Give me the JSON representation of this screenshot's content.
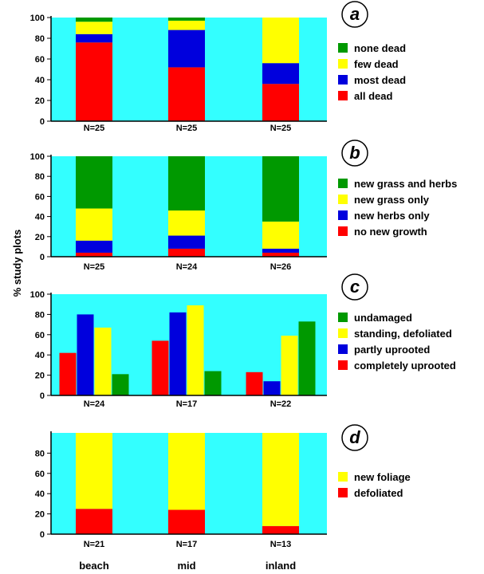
{
  "figure": {
    "ylabel": "% study plots",
    "sites": [
      "beach",
      "mid",
      "inland"
    ]
  },
  "chart_data": [
    {
      "panel_label": "a",
      "type": "bar",
      "stacked": true,
      "categories": [
        "N=25",
        "N=25",
        "N=25"
      ],
      "ylim": [
        0,
        100
      ],
      "yticks": [
        0,
        20,
        40,
        60,
        80,
        100
      ],
      "series": [
        {
          "name": "all dead",
          "color": "#ff0000",
          "values": [
            76,
            52,
            36
          ]
        },
        {
          "name": "most dead",
          "color": "#0000dd",
          "values": [
            8,
            36,
            20
          ]
        },
        {
          "name": "few dead",
          "color": "#ffff00",
          "values": [
            12,
            9,
            44
          ]
        },
        {
          "name": "none dead",
          "color": "#009900",
          "values": [
            4,
            3,
            0
          ]
        }
      ]
    },
    {
      "panel_label": "b",
      "type": "bar",
      "stacked": true,
      "categories": [
        "N=25",
        "N=24",
        "N=26"
      ],
      "ylim": [
        0,
        100
      ],
      "yticks": [
        0,
        20,
        40,
        60,
        80,
        100
      ],
      "series": [
        {
          "name": "no new growth",
          "color": "#ff0000",
          "values": [
            4,
            8,
            4
          ]
        },
        {
          "name": "new herbs only",
          "color": "#0000dd",
          "values": [
            12,
            13,
            4
          ]
        },
        {
          "name": "new grass only",
          "color": "#ffff00",
          "values": [
            32,
            25,
            27
          ]
        },
        {
          "name": "new grass and herbs",
          "color": "#009900",
          "values": [
            52,
            54,
            65
          ]
        }
      ]
    },
    {
      "panel_label": "c",
      "type": "bar",
      "stacked": false,
      "categories": [
        "N=24",
        "N=17",
        "N=22"
      ],
      "ylim": [
        0,
        100
      ],
      "yticks": [
        0,
        20,
        40,
        60,
        80,
        100
      ],
      "series": [
        {
          "name": "completely uprooted",
          "color": "#ff0000",
          "values": [
            42,
            54,
            23
          ]
        },
        {
          "name": "partly uprooted",
          "color": "#0000dd",
          "values": [
            80,
            82,
            14
          ]
        },
        {
          "name": "standing, defoliated",
          "color": "#ffff00",
          "values": [
            67,
            89,
            59
          ]
        },
        {
          "name": "undamaged",
          "color": "#009900",
          "values": [
            21,
            24,
            73
          ]
        }
      ]
    },
    {
      "panel_label": "d",
      "type": "bar",
      "stacked": true,
      "categories": [
        "N=21",
        "N=17",
        "N=13"
      ],
      "ylim": [
        0,
        100
      ],
      "yticks": [
        0,
        20,
        40,
        60,
        80
      ],
      "series": [
        {
          "name": "defoliated",
          "color": "#ff0000",
          "values": [
            25,
            24,
            8
          ]
        },
        {
          "name": "new foliage",
          "color": "#ffff00",
          "values": [
            75,
            76,
            92
          ]
        }
      ]
    }
  ]
}
